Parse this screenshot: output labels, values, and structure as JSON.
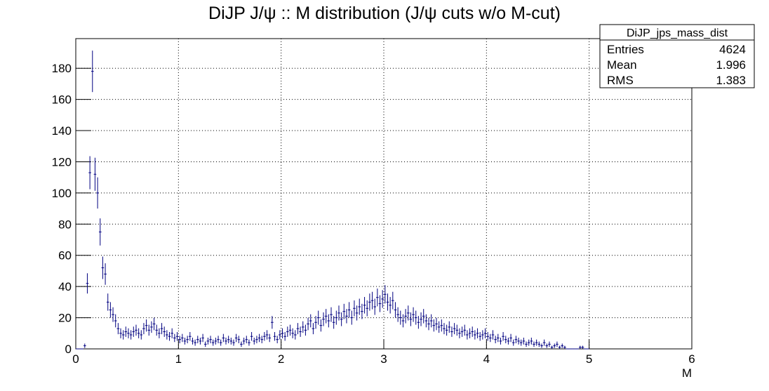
{
  "chart_data": {
    "type": "histogram",
    "title": "DiJP J/ψ :: M distribution (J/ψ cuts w/o M-cut)",
    "x_label": "M",
    "color": "#000080",
    "grid": true,
    "xlim": [
      0,
      6
    ],
    "xticks": [
      0,
      1,
      2,
      3,
      4,
      5,
      6
    ],
    "ylim": [
      0,
      199
    ],
    "yticks": [
      0,
      20,
      40,
      60,
      80,
      100,
      120,
      140,
      160,
      180
    ],
    "bins": [
      0,
      0.025,
      0.05,
      0.075,
      0.1,
      0.125,
      0.15,
      0.175,
      0.2,
      0.225,
      0.25,
      0.275,
      0.3,
      0.325,
      0.35,
      0.375,
      0.4,
      0.425,
      0.45,
      0.475,
      0.5,
      0.525,
      0.55,
      0.575,
      0.6,
      0.625,
      0.65,
      0.675,
      0.7,
      0.725,
      0.75,
      0.775,
      0.8,
      0.825,
      0.85,
      0.875,
      0.9,
      0.925,
      0.95,
      0.975,
      1,
      1.025,
      1.05,
      1.075,
      1.1,
      1.125,
      1.15,
      1.175,
      1.2,
      1.225,
      1.25,
      1.275,
      1.3,
      1.325,
      1.35,
      1.375,
      1.4,
      1.425,
      1.45,
      1.475,
      1.5,
      1.525,
      1.55,
      1.575,
      1.6,
      1.625,
      1.65,
      1.675,
      1.7,
      1.725,
      1.75,
      1.775,
      1.8,
      1.825,
      1.85,
      1.875,
      1.9,
      1.925,
      1.95,
      1.975,
      2,
      2.025,
      2.05,
      2.075,
      2.1,
      2.125,
      2.15,
      2.175,
      2.2,
      2.225,
      2.25,
      2.275,
      2.3,
      2.325,
      2.35,
      2.375,
      2.4,
      2.425,
      2.45,
      2.475,
      2.5,
      2.525,
      2.55,
      2.575,
      2.6,
      2.625,
      2.65,
      2.675,
      2.7,
      2.725,
      2.75,
      2.775,
      2.8,
      2.825,
      2.85,
      2.875,
      2.9,
      2.925,
      2.95,
      2.975,
      3,
      3.025,
      3.05,
      3.075,
      3.1,
      3.125,
      3.15,
      3.175,
      3.2,
      3.225,
      3.25,
      3.275,
      3.3,
      3.325,
      3.35,
      3.375,
      3.4,
      3.425,
      3.45,
      3.475,
      3.5,
      3.525,
      3.55,
      3.575,
      3.6,
      3.625,
      3.65,
      3.675,
      3.7,
      3.725,
      3.75,
      3.775,
      3.8,
      3.825,
      3.85,
      3.875,
      3.9,
      3.925,
      3.95,
      3.975,
      4,
      4.025,
      4.05,
      4.075,
      4.1,
      4.125,
      4.15,
      4.175,
      4.2,
      4.225,
      4.25,
      4.275,
      4.3,
      4.325,
      4.35,
      4.375,
      4.4,
      4.425,
      4.45,
      4.475,
      4.5,
      4.525,
      4.55,
      4.575,
      4.6,
      4.625,
      4.65,
      4.675,
      4.7,
      4.725,
      4.75,
      4.775,
      4.8,
      4.825,
      4.85,
      4.875,
      4.9,
      4.925,
      4.95,
      4.975,
      5
    ],
    "values": [
      0,
      0,
      0,
      2,
      42,
      113,
      178,
      112,
      100,
      75,
      52,
      48,
      30,
      25,
      22,
      18,
      13,
      10,
      9,
      11,
      10,
      9,
      11,
      12,
      10,
      9,
      13,
      15,
      12,
      14,
      16,
      12,
      10,
      13,
      11,
      9,
      8,
      10,
      7,
      8,
      6,
      7,
      5,
      6,
      8,
      5,
      4,
      6,
      5,
      7,
      3,
      5,
      6,
      4,
      5,
      6,
      4,
      7,
      5,
      6,
      5,
      4,
      7,
      6,
      3,
      5,
      6,
      4,
      8,
      5,
      6,
      7,
      6,
      8,
      9,
      7,
      17,
      8,
      6,
      9,
      10,
      8,
      11,
      12,
      10,
      9,
      13,
      11,
      14,
      12,
      16,
      18,
      13,
      17,
      20,
      15,
      19,
      21,
      18,
      22,
      17,
      20,
      23,
      19,
      24,
      21,
      25,
      20,
      26,
      23,
      27,
      24,
      28,
      26,
      30,
      31,
      27,
      33,
      29,
      32,
      35,
      30,
      28,
      31,
      25,
      22,
      20,
      18,
      21,
      23,
      19,
      22,
      20,
      17,
      19,
      21,
      18,
      16,
      18,
      15,
      16,
      14,
      15,
      13,
      12,
      14,
      11,
      13,
      12,
      10,
      11,
      12,
      9,
      10,
      11,
      9,
      10,
      8,
      9,
      10,
      8,
      7,
      9,
      6,
      7,
      5,
      8,
      6,
      5,
      7,
      4,
      6,
      5,
      4,
      5,
      3,
      4,
      5,
      3,
      4,
      3,
      2,
      4,
      2,
      3,
      1,
      2,
      3,
      1,
      2,
      1,
      0,
      0,
      0,
      0,
      0,
      1,
      1,
      0,
      0
    ],
    "errors": [
      0,
      0,
      0,
      1.4,
      6.5,
      10.6,
      13.3,
      10.6,
      10,
      8.7,
      7.2,
      6.9,
      5.5,
      5,
      4.7,
      4.2,
      3.6,
      3.2,
      3,
      3.3,
      3.2,
      3,
      3.3,
      3.5,
      3.2,
      3,
      3.6,
      3.9,
      3.5,
      3.7,
      4,
      3.5,
      3.2,
      3.6,
      3.3,
      3,
      2.8,
      3.2,
      2.6,
      2.8,
      2.4,
      2.6,
      2.2,
      2.4,
      2.8,
      2.2,
      2,
      2.4,
      2.2,
      2.6,
      1.7,
      2.2,
      2.4,
      2,
      2.2,
      2.4,
      2,
      2.6,
      2.2,
      2.4,
      2.2,
      2,
      2.6,
      2.4,
      1.7,
      2.2,
      2.4,
      2,
      2.8,
      2.2,
      2.4,
      2.6,
      2.4,
      2.8,
      3,
      2.6,
      4.1,
      2.8,
      2.4,
      3,
      3.2,
      2.8,
      3.3,
      3.5,
      3.2,
      3,
      3.6,
      3.3,
      3.7,
      3.5,
      4,
      4.2,
      3.6,
      4.1,
      4.5,
      3.9,
      4.4,
      4.6,
      4.2,
      4.7,
      4.1,
      4.5,
      4.8,
      4.4,
      4.9,
      4.6,
      5,
      4.5,
      5.1,
      4.8,
      5.2,
      4.9,
      5.3,
      5.1,
      5.5,
      5.6,
      5.2,
      5.7,
      5.4,
      5.7,
      5.9,
      5.5,
      5.3,
      5.6,
      5,
      4.7,
      4.5,
      4.2,
      4.6,
      4.8,
      4.4,
      4.7,
      4.5,
      4.1,
      4.4,
      4.6,
      4.2,
      4,
      4.2,
      3.9,
      4,
      3.7,
      3.9,
      3.6,
      3.5,
      3.7,
      3.3,
      3.6,
      3.5,
      3.2,
      3.3,
      3.5,
      3,
      3.2,
      3.3,
      3,
      3.2,
      2.8,
      3,
      3.2,
      2.8,
      2.6,
      3,
      2.4,
      2.6,
      2.2,
      2.8,
      2.4,
      2.2,
      2.6,
      2,
      2.4,
      2.2,
      2,
      2.2,
      1.7,
      2,
      2.2,
      1.7,
      2,
      1.7,
      1.4,
      2,
      1.4,
      1.7,
      1,
      1.4,
      1.7,
      1,
      1.4,
      1,
      0,
      0,
      0,
      0,
      0,
      1,
      1,
      0,
      0
    ],
    "stats": {
      "title": "DiJP_jps_mass_dist",
      "rows": [
        {
          "label": "Entries",
          "value": 4624
        },
        {
          "label": "Mean",
          "value": 1.996
        },
        {
          "label": "RMS",
          "value": 1.383
        }
      ]
    }
  }
}
